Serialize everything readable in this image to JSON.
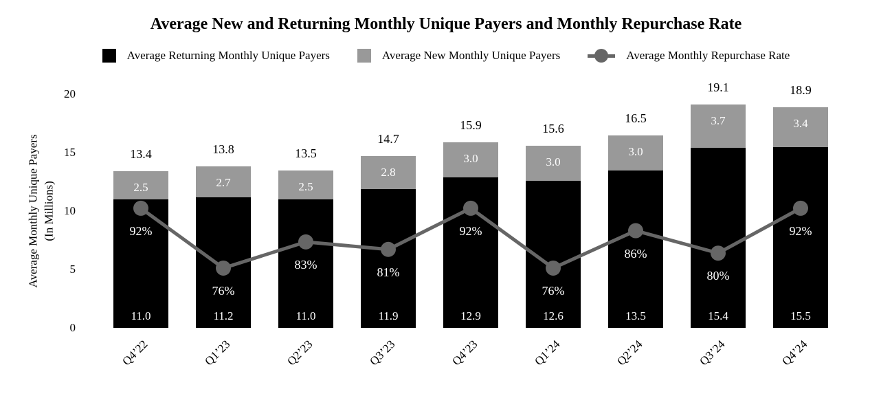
{
  "title": "Average New and Returning Monthly Unique Payers and Monthly Repurchase Rate",
  "y_axis": {
    "line1": "Average Monthly Unique Payers",
    "line2": "(In Millions)"
  },
  "colors": {
    "returning_bar": "#000000",
    "new_bar": "#999999",
    "repurchase_line": "#666666",
    "label_on_bar": "#ffffff",
    "text": "#000000"
  },
  "chart_data": {
    "type": "bar",
    "subtype": "stacked-bars-with-line-overlay",
    "title": "Average New and Returning Monthly Unique Payers and Monthly Repurchase Rate",
    "xlabel": "",
    "ylabel": "Average Monthly Unique Payers (In Millions)",
    "ylim": [
      0,
      20
    ],
    "yticks": [
      0,
      5,
      10,
      15,
      20
    ],
    "grid": false,
    "legend_position": "top",
    "categories": [
      "Q4’22",
      "Q1’23",
      "Q2’23",
      "Q3’23",
      "Q4’23",
      "Q1’24",
      "Q2’24",
      "Q3’24",
      "Q4’24"
    ],
    "series": [
      {
        "name": "Average Returning Monthly Unique Payers",
        "role": "stack-bottom",
        "color": "#000000",
        "values": [
          11.0,
          11.2,
          11.0,
          11.9,
          12.9,
          12.6,
          13.5,
          15.4,
          15.5
        ],
        "labels": [
          "11.0",
          "11.2",
          "11.0",
          "11.9",
          "12.9",
          "12.6",
          "13.5",
          "15.4",
          "15.5"
        ]
      },
      {
        "name": "Average New Monthly Unique Payers",
        "role": "stack-top",
        "color": "#999999",
        "values": [
          2.5,
          2.7,
          2.5,
          2.8,
          3.0,
          3.0,
          3.0,
          3.7,
          3.4
        ],
        "labels": [
          "2.5",
          "2.7",
          "2.5",
          "2.8",
          "3.0",
          "3.0",
          "3.0",
          "3.7",
          "3.4"
        ]
      },
      {
        "name": "Average Monthly Repurchase Rate",
        "role": "line",
        "color": "#666666",
        "values_pct": [
          92,
          76,
          83,
          81,
          92,
          76,
          86,
          80,
          92
        ],
        "labels": [
          "92%",
          "76%",
          "83%",
          "81%",
          "92%",
          "76%",
          "86%",
          "80%",
          "92%"
        ]
      }
    ],
    "totals": {
      "values": [
        13.4,
        13.8,
        13.5,
        14.7,
        15.9,
        15.6,
        16.5,
        19.1,
        18.9
      ],
      "labels": [
        "13.4",
        "13.8",
        "13.5",
        "14.7",
        "15.9",
        "15.6",
        "16.5",
        "19.1",
        "18.9"
      ]
    }
  }
}
